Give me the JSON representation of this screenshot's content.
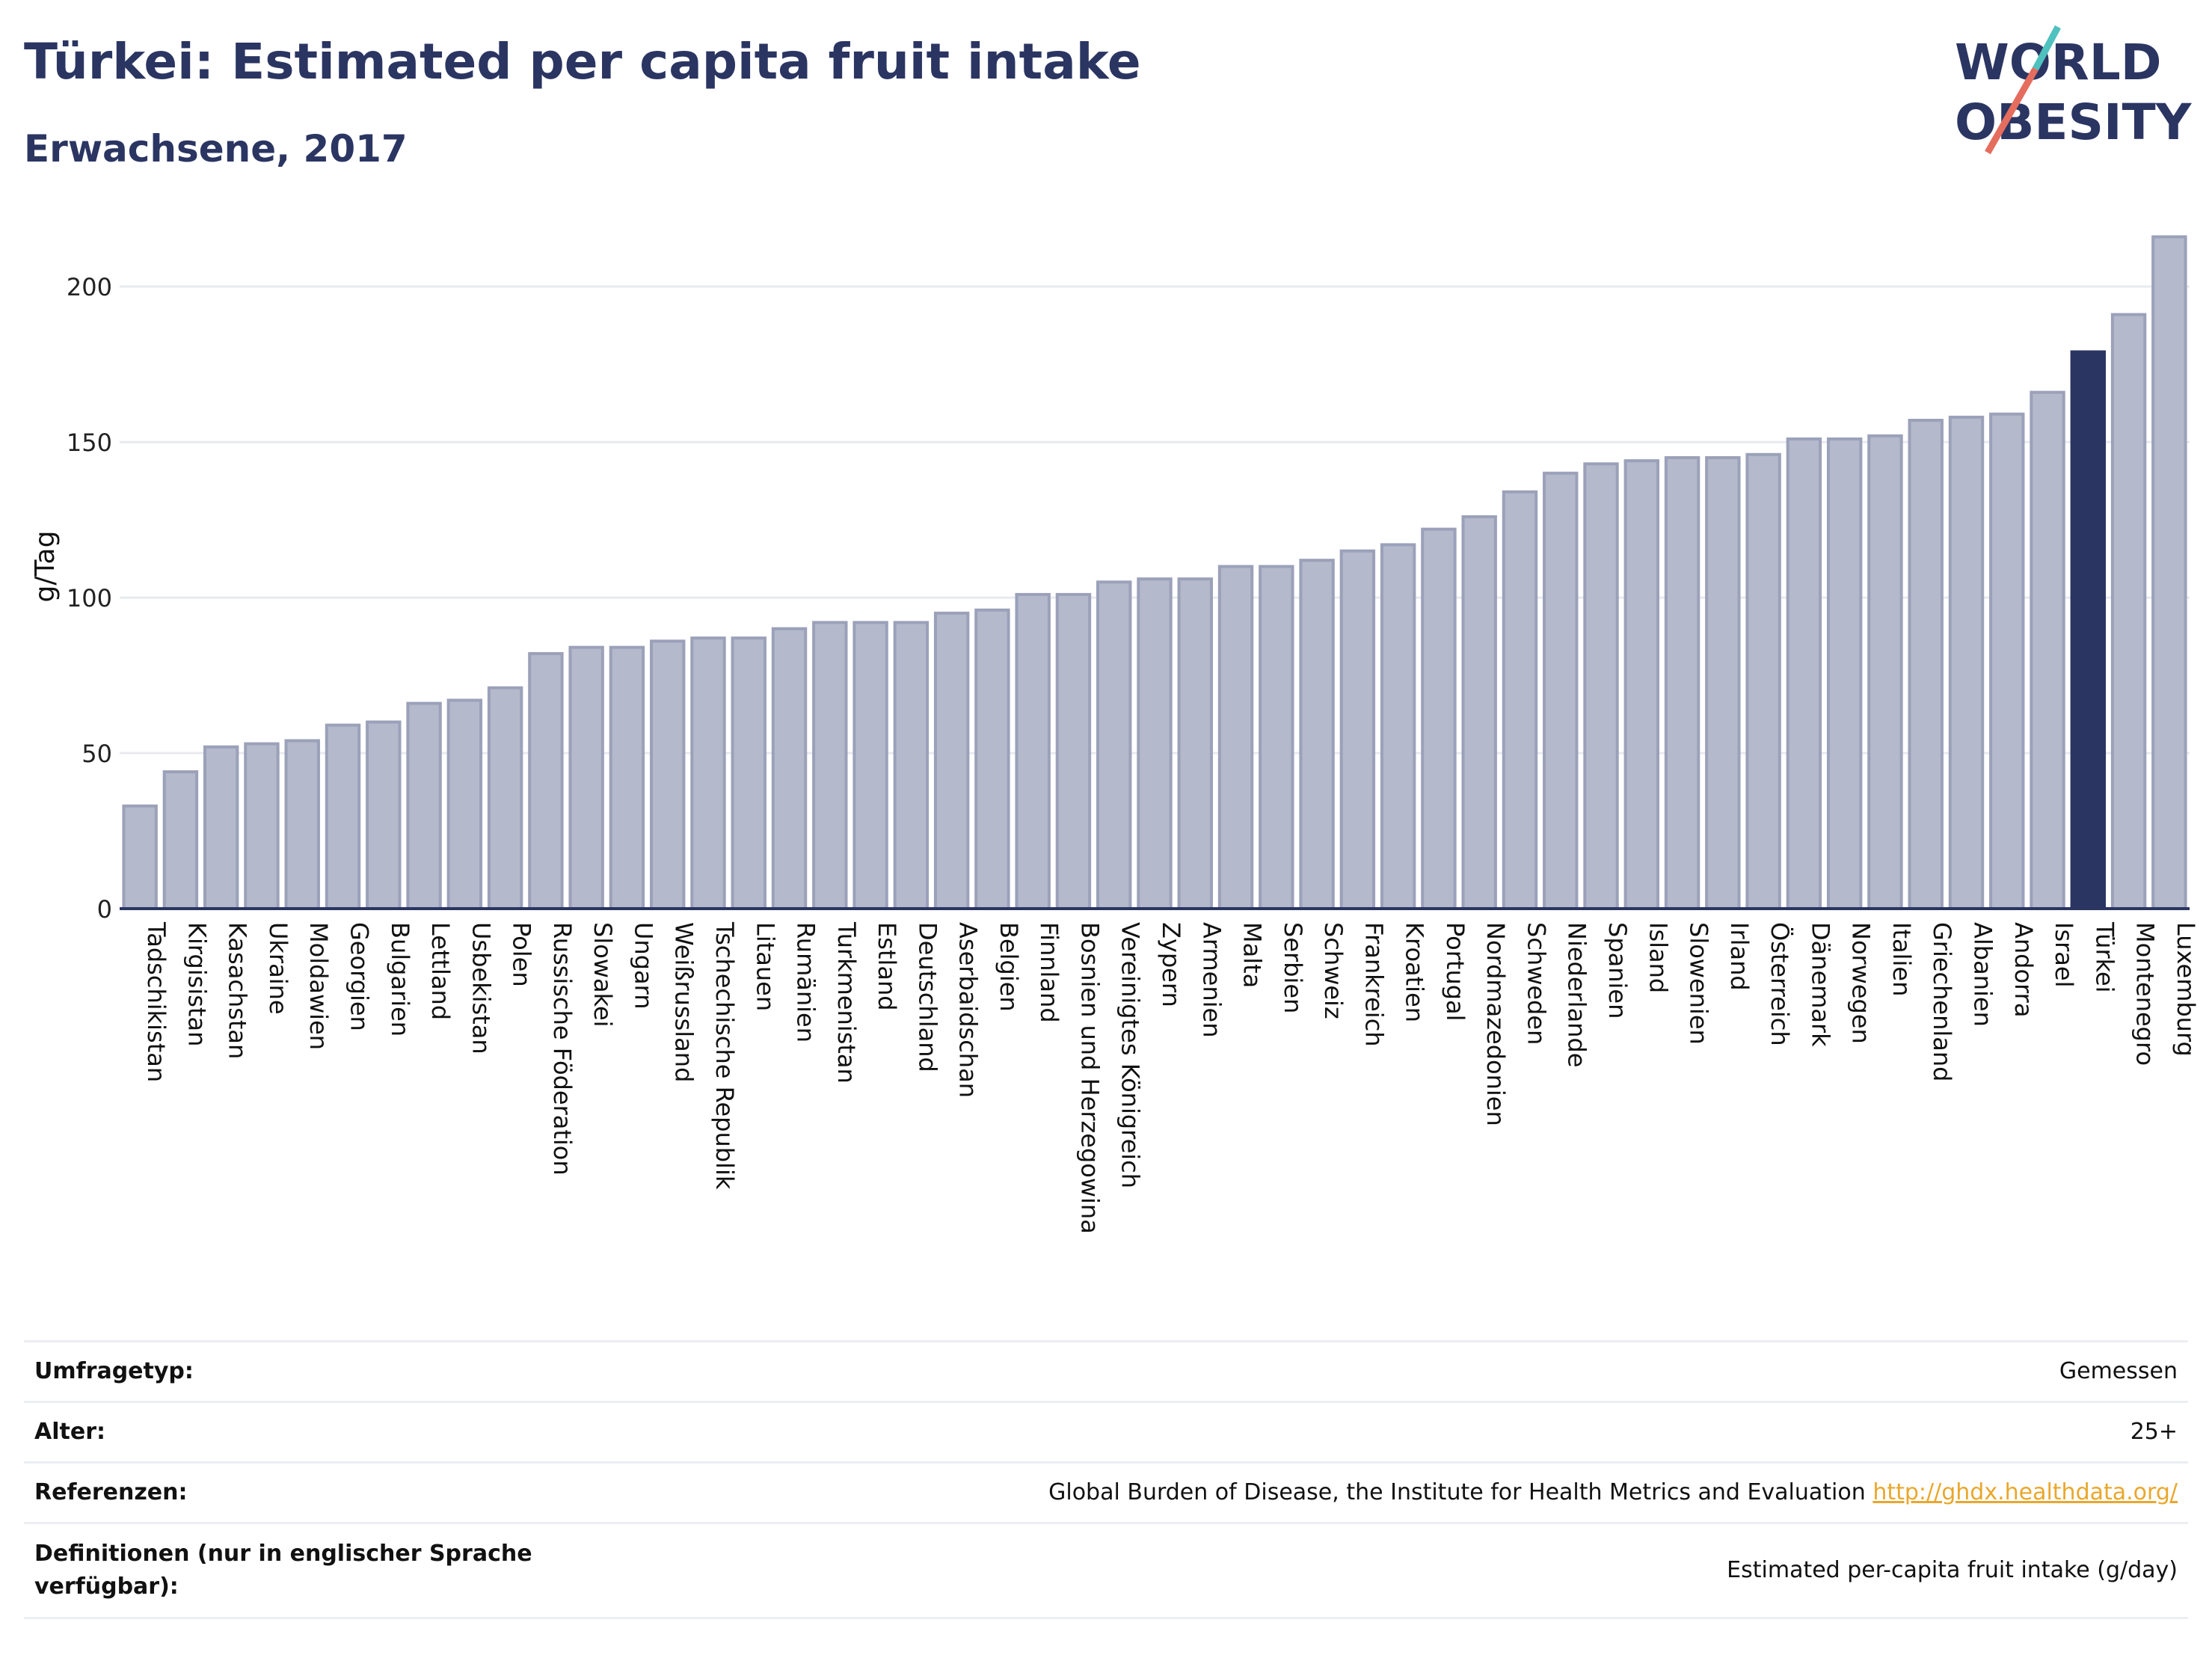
{
  "header": {
    "title": "Türkei: Estimated per capita fruit intake",
    "subtitle": "Erwachsene, 2017"
  },
  "logo": {
    "line1": "WORLD",
    "line2": "OBESITY",
    "colors": [
      "#2b3562",
      "#e56d5e",
      "#4fc1bf"
    ]
  },
  "colors": {
    "bar": "#b4b9cb",
    "bar_stroke": "#9ba1b9",
    "highlight": "#2b3562",
    "grid": "#e8eaf0",
    "axis": "#2b3562"
  },
  "chart_data": {
    "type": "bar",
    "title": "Türkei: Estimated per capita fruit intake",
    "subtitle": "Erwachsene, 2017",
    "ylabel": "g/Tag",
    "xlabel": "",
    "ylim": [
      0,
      220
    ],
    "yticks": [
      0,
      50,
      100,
      150,
      200
    ],
    "grid": true,
    "highlight": "Türkei",
    "categories": [
      "Tadschikistan",
      "Kirgisistan",
      "Kasachstan",
      "Ukraine",
      "Moldawien",
      "Georgien",
      "Bulgarien",
      "Lettland",
      "Usbekistan",
      "Polen",
      "Russische Föderation",
      "Slowakei",
      "Ungarn",
      "Weißrussland",
      "Tschechische Republik",
      "Litauen",
      "Rumänien",
      "Turkmenistan",
      "Estland",
      "Deutschland",
      "Aserbaidschan",
      "Belgien",
      "Finnland",
      "Bosnien und Herzegowina",
      "Vereinigtes Königreich",
      "Zypern",
      "Armenien",
      "Malta",
      "Serbien",
      "Schweiz",
      "Frankreich",
      "Kroatien",
      "Portugal",
      "Nordmazedonien",
      "Schweden",
      "Niederlande",
      "Spanien",
      "Island",
      "Slowenien",
      "Irland",
      "Österreich",
      "Dänemark",
      "Norwegen",
      "Italien",
      "Griechenland",
      "Albanien",
      "Andorra",
      "Israel",
      "Türkei",
      "Montenegro",
      "Luxemburg"
    ],
    "values": [
      33,
      44,
      52,
      53,
      54,
      59,
      60,
      66,
      67,
      71,
      82,
      84,
      84,
      86,
      87,
      87,
      90,
      92,
      92,
      92,
      95,
      96,
      101,
      101,
      105,
      106,
      106,
      110,
      110,
      112,
      115,
      117,
      122,
      126,
      134,
      140,
      143,
      144,
      145,
      145,
      146,
      151,
      151,
      152,
      157,
      158,
      159,
      166,
      179,
      191,
      216
    ]
  },
  "info": {
    "survey_label": "Umfragetyp:",
    "survey_value": "Gemessen",
    "age_label": "Alter:",
    "age_value": "25+",
    "refs_label": "Referenzen:",
    "refs_value": "Global Burden of Disease, the Institute for Health Metrics and Evaluation",
    "refs_link": "http://ghdx.healthdata.org/",
    "defs_label": "Definitionen (nur in englischer Sprache verfügbar):",
    "defs_value": "Estimated per-capita fruit intake (g/day)"
  }
}
